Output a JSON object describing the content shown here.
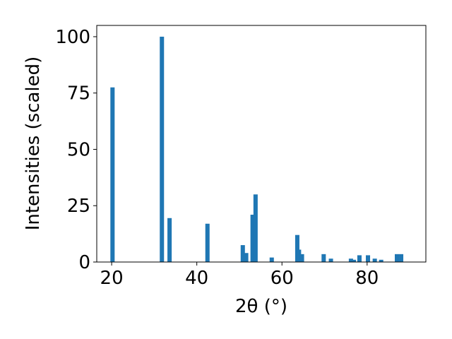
{
  "chart_data": {
    "type": "bar",
    "xlabel": "2θ (°)",
    "ylabel": "Intensities (scaled)",
    "x": [
      20.2,
      31.8,
      33.6,
      42.5,
      50.8,
      51.6,
      53.1,
      53.8,
      57.6,
      63.6,
      64.0,
      64.7,
      69.8,
      71.5,
      76.2,
      76.9,
      78.2,
      80.2,
      81.8,
      83.3,
      87.0,
      88.0
    ],
    "values": [
      77.5,
      100,
      19.5,
      17,
      7.5,
      4,
      21,
      30,
      2,
      12,
      5.5,
      3.5,
      3.5,
      1.5,
      1.5,
      1,
      3,
      3,
      1.5,
      1,
      3.5,
      3.5
    ],
    "color": "#1f77b4",
    "xlim": [
      16.5,
      93.8
    ],
    "xticks": [
      20,
      40,
      60,
      80
    ],
    "ylim": [
      0,
      105
    ],
    "yticks": [
      0,
      25,
      50,
      75,
      100
    ]
  }
}
